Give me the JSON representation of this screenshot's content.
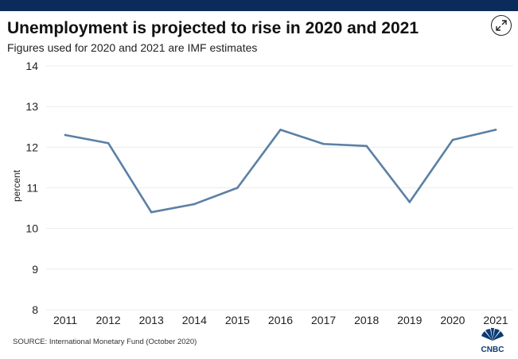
{
  "header": {
    "title": "Unemployment is projected to rise in 2020 and 2021",
    "subtitle": "Figures used for 2020 and 2021 are IMF estimates"
  },
  "icons": {
    "expand": "expand-arrows-icon",
    "logo": "cnbc-peacock-logo"
  },
  "colors": {
    "topbar": "#0b2b5a",
    "line": "#5b80a5",
    "grid": "#ececec",
    "text": "#222222"
  },
  "footer": {
    "source": "SOURCE: International Monetary Fund (October 2020)",
    "logo_text": "CNBC"
  },
  "chart_data": {
    "type": "line",
    "title": "Unemployment is projected to rise in 2020 and 2021",
    "subtitle": "Figures used for 2020 and 2021 are IMF estimates",
    "xlabel": "",
    "ylabel": "percent",
    "categories": [
      "2011",
      "2012",
      "2013",
      "2014",
      "2015",
      "2016",
      "2017",
      "2018",
      "2019",
      "2020",
      "2021"
    ],
    "series": [
      {
        "values": [
          12.3,
          12.1,
          10.4,
          10.6,
          11.0,
          12.43,
          12.08,
          12.03,
          10.65,
          12.18,
          12.43
        ]
      }
    ],
    "ylim": [
      8,
      14
    ],
    "yticks": [
      8,
      9,
      10,
      11,
      12,
      13,
      14
    ],
    "grid": true,
    "legend": "none"
  }
}
